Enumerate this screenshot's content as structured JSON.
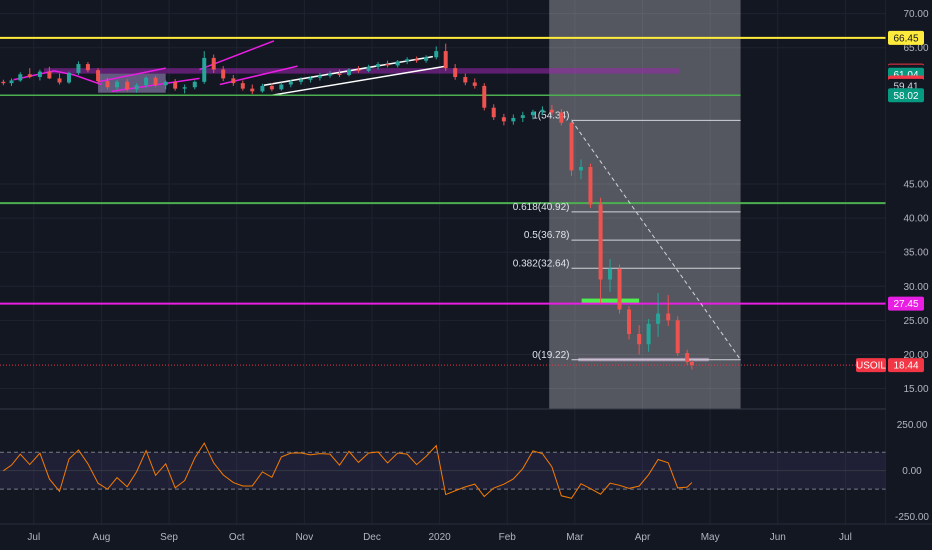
{
  "chart_data": {
    "type": "candlestick",
    "symbol": "USOIL",
    "last_price": 18.44,
    "price_axis": {
      "range": [
        12,
        72
      ],
      "ticks": [
        "70.00",
        "65.00",
        "45.00",
        "40.00",
        "35.00",
        "30.00",
        "25.00",
        "20.00",
        "15.00"
      ]
    },
    "time_axis": {
      "range_months": [
        -0.5,
        12.6
      ],
      "labels": [
        {
          "m": 0,
          "label": "Jul"
        },
        {
          "m": 1,
          "label": "Aug"
        },
        {
          "m": 2,
          "label": "Sep"
        },
        {
          "m": 3,
          "label": "Oct"
        },
        {
          "m": 4,
          "label": "Nov"
        },
        {
          "m": 5,
          "label": "Dec"
        },
        {
          "m": 6,
          "label": "2020"
        },
        {
          "m": 7,
          "label": "Feb"
        },
        {
          "m": 8,
          "label": "Mar"
        },
        {
          "m": 9,
          "label": "Apr"
        },
        {
          "m": 10,
          "label": "May"
        },
        {
          "m": 11,
          "label": "Jun"
        },
        {
          "m": 12,
          "label": "Jul"
        }
      ]
    },
    "price_badges": [
      {
        "value": 66.45,
        "label": "66.45",
        "bg": "#ffeb3b",
        "fg": "#131722"
      },
      {
        "value": 61.64,
        "label": "61.64",
        "bg": "#f23645",
        "fg": "#ffffff"
      },
      {
        "value": 61.5,
        "label": "61.50",
        "bg": "#131722",
        "fg": "#d1d4dc"
      },
      {
        "value": 61.04,
        "label": "61.04",
        "bg": "#089981",
        "fg": "#ffffff"
      },
      {
        "value": 59.89,
        "label": "59.89",
        "bg": "#f23645",
        "fg": "#ffffff"
      },
      {
        "value": 59.41,
        "label": "59.41",
        "bg": "#131722",
        "fg": "#d1d4dc"
      },
      {
        "value": 58.02,
        "label": "58.02",
        "bg": "#089981",
        "fg": "#ffffff"
      },
      {
        "value": 27.45,
        "label": "27.45",
        "bg": "#e91ee3",
        "fg": "#ffffff"
      }
    ],
    "horizontal_lines": [
      {
        "value": 66.45,
        "color": "#ffeb3b"
      },
      {
        "value": 42.2,
        "color": "#4caf50"
      },
      {
        "value": 27.45,
        "color": "#e91ee3"
      }
    ],
    "segments": [
      {
        "m1": -0.5,
        "m2": 10.45,
        "value": 58.02,
        "color": "#4caf50"
      }
    ],
    "fib_levels": [
      {
        "value": 54.34,
        "label": "1(54.34)"
      },
      {
        "value": 40.92,
        "label": "0.618(40.92)"
      },
      {
        "value": 36.78,
        "label": "0.5(36.78)"
      },
      {
        "value": 32.64,
        "label": "0.382(32.64)"
      },
      {
        "value": 19.22,
        "label": "0(19.22)"
      }
    ],
    "candles": [
      [
        -0.45,
        60.0,
        60.3,
        59.5,
        59.8
      ],
      [
        -0.33,
        59.8,
        60.5,
        59.4,
        60.2
      ],
      [
        -0.2,
        60.2,
        61.4,
        60.0,
        61.1
      ],
      [
        -0.06,
        61.1,
        62.0,
        60.5,
        60.7
      ],
      [
        0.09,
        60.7,
        61.8,
        60.2,
        61.5
      ],
      [
        0.23,
        61.5,
        62.2,
        60.4,
        60.5
      ],
      [
        0.38,
        60.5,
        61.2,
        59.6,
        59.9
      ],
      [
        0.52,
        59.9,
        61.5,
        59.7,
        61.3
      ],
      [
        0.66,
        61.3,
        63.0,
        61.0,
        62.6
      ],
      [
        0.8,
        62.6,
        62.9,
        61.4,
        61.7
      ],
      [
        0.95,
        61.7,
        62.0,
        59.8,
        60.1
      ],
      [
        1.09,
        60.1,
        60.6,
        58.9,
        59.2
      ],
      [
        1.23,
        59.2,
        60.3,
        58.8,
        60.0
      ],
      [
        1.38,
        60.0,
        60.4,
        58.6,
        58.9
      ],
      [
        1.52,
        58.9,
        59.8,
        58.4,
        59.5
      ],
      [
        1.66,
        59.5,
        60.8,
        59.1,
        60.6
      ],
      [
        1.8,
        60.6,
        60.9,
        59.2,
        59.5
      ],
      [
        1.95,
        59.5,
        60.2,
        58.9,
        60.0
      ],
      [
        2.09,
        60.0,
        60.4,
        58.7,
        59.0
      ],
      [
        2.23,
        59.0,
        59.6,
        58.3,
        59.2
      ],
      [
        2.38,
        59.2,
        60.2,
        58.9,
        60.0
      ],
      [
        2.52,
        60.0,
        64.5,
        59.7,
        63.5
      ],
      [
        2.66,
        63.5,
        64.0,
        61.3,
        61.8
      ],
      [
        2.8,
        61.8,
        62.3,
        60.1,
        60.5
      ],
      [
        2.95,
        60.5,
        61.0,
        59.4,
        59.8
      ],
      [
        3.09,
        59.8,
        60.2,
        58.7,
        59.0
      ],
      [
        3.23,
        59.0,
        59.6,
        58.2,
        58.6
      ],
      [
        3.38,
        58.6,
        59.7,
        58.4,
        59.4
      ],
      [
        3.52,
        59.4,
        59.8,
        58.6,
        58.9
      ],
      [
        3.66,
        58.9,
        59.9,
        58.7,
        59.6
      ],
      [
        3.8,
        59.6,
        60.3,
        59.2,
        60.0
      ],
      [
        3.95,
        60.0,
        60.7,
        59.6,
        60.3
      ],
      [
        4.09,
        60.3,
        60.8,
        59.9,
        60.6
      ],
      [
        4.23,
        60.6,
        61.3,
        60.2,
        60.9
      ],
      [
        4.38,
        60.9,
        61.6,
        60.6,
        61.2
      ],
      [
        4.52,
        61.2,
        61.8,
        60.7,
        61.0
      ],
      [
        4.66,
        61.0,
        62.0,
        60.8,
        61.8
      ],
      [
        4.8,
        61.8,
        62.3,
        61.3,
        61.6
      ],
      [
        4.95,
        61.6,
        62.5,
        61.4,
        62.2
      ],
      [
        5.09,
        62.2,
        62.9,
        61.8,
        62.6
      ],
      [
        5.23,
        62.6,
        63.1,
        62.1,
        62.4
      ],
      [
        5.38,
        62.4,
        63.2,
        62.1,
        63.0
      ],
      [
        5.52,
        63.0,
        63.6,
        62.6,
        63.3
      ],
      [
        5.66,
        63.3,
        63.7,
        62.8,
        63.1
      ],
      [
        5.8,
        63.1,
        63.9,
        62.8,
        63.6
      ],
      [
        5.95,
        63.6,
        65.2,
        63.3,
        64.5
      ],
      [
        6.09,
        64.5,
        65.6,
        61.6,
        62.0
      ],
      [
        6.23,
        62.0,
        62.6,
        60.3,
        60.7
      ],
      [
        6.38,
        60.7,
        61.2,
        59.5,
        59.9
      ],
      [
        6.52,
        59.9,
        60.5,
        59.0,
        59.4
      ],
      [
        6.66,
        59.4,
        59.8,
        55.8,
        56.2
      ],
      [
        6.8,
        56.2,
        56.7,
        54.4,
        54.8
      ],
      [
        6.95,
        54.8,
        55.3,
        53.6,
        54.2
      ],
      [
        7.09,
        54.2,
        55.2,
        53.7,
        54.7
      ],
      [
        7.23,
        54.7,
        55.6,
        54.1,
        55.1
      ],
      [
        7.38,
        55.1,
        55.9,
        54.5,
        55.6
      ],
      [
        7.52,
        55.6,
        56.4,
        55.1,
        55.9
      ],
      [
        7.66,
        55.9,
        56.6,
        55.1,
        55.5
      ],
      [
        7.8,
        55.5,
        56.0,
        53.6,
        54.0
      ],
      [
        7.95,
        54.0,
        54.5,
        46.2,
        47.0
      ],
      [
        8.09,
        47.0,
        48.6,
        45.7,
        47.5
      ],
      [
        8.23,
        47.5,
        48.0,
        41.5,
        42.0
      ],
      [
        8.38,
        42.0,
        43.0,
        27.5,
        31.0
      ],
      [
        8.52,
        31.0,
        34.0,
        29.2,
        32.6
      ],
      [
        8.66,
        32.6,
        33.2,
        26.0,
        26.6
      ],
      [
        8.8,
        26.6,
        27.1,
        22.2,
        23.0
      ],
      [
        8.95,
        23.0,
        24.3,
        20.0,
        21.5
      ],
      [
        9.09,
        21.5,
        25.2,
        20.4,
        24.5
      ],
      [
        9.23,
        24.5,
        29.0,
        22.6,
        26.0
      ],
      [
        9.38,
        26.0,
        28.7,
        24.2,
        25.0
      ],
      [
        9.52,
        25.0,
        25.6,
        19.8,
        20.2
      ],
      [
        9.66,
        20.2,
        20.7,
        18.5,
        18.9
      ],
      [
        9.73,
        18.9,
        19.2,
        17.8,
        18.44
      ]
    ],
    "oscillator": {
      "range": [
        -290,
        330
      ],
      "ticks": [
        "250.00",
        "0.00",
        "-250.00"
      ],
      "band": [
        100,
        -100
      ]
    }
  }
}
